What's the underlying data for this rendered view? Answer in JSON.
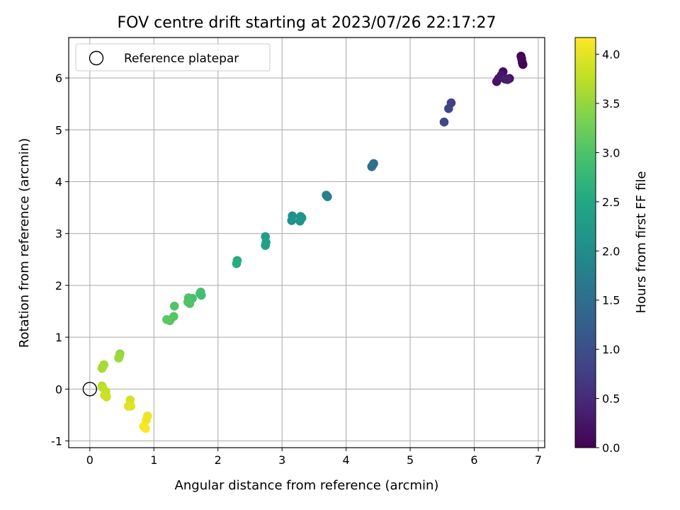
{
  "chart_data": {
    "type": "scatter",
    "title": "FOV centre drift starting at 2023/07/26 22:17:27",
    "xlabel": "Angular distance from reference (arcmin)",
    "ylabel": "Rotation from reference (arcmin)",
    "xlim": [
      -0.33,
      7.1
    ],
    "ylim": [
      -1.13,
      6.78
    ],
    "xticks": [
      0,
      1,
      2,
      3,
      4,
      5,
      6,
      7
    ],
    "yticks": [
      -1,
      0,
      1,
      2,
      3,
      4,
      5,
      6
    ],
    "grid": true,
    "legend": {
      "location": "top-left",
      "entries": [
        "Reference platepar"
      ]
    },
    "reference_point": {
      "x": 0,
      "y": 0,
      "marker": "open-circle"
    },
    "colorbar": {
      "label": "Hours from first FF file",
      "range": [
        0.0,
        4.17
      ],
      "ticks": [
        "0.0",
        "0.5",
        "1.0",
        "1.5",
        "2.0",
        "2.5",
        "3.0",
        "3.5",
        "4.0"
      ],
      "colormap": "viridis"
    },
    "series": [
      {
        "marker": "filled-circle",
        "x": [
          6.73,
          6.75,
          6.76,
          6.74,
          6.45,
          6.5,
          6.55,
          6.35,
          6.38,
          6.42,
          6.48,
          6.52,
          5.64,
          5.6,
          5.53,
          4.43,
          4.4,
          4.41,
          3.69,
          3.71,
          3.16,
          3.15,
          3.29,
          3.28,
          3.31,
          2.74,
          2.75,
          2.74,
          2.3,
          2.29,
          1.73,
          1.74,
          1.72,
          1.57,
          1.6,
          1.54,
          1.53,
          1.56,
          1.32,
          1.31,
          1.25,
          1.2,
          0.47,
          0.46,
          0.45,
          0.22,
          0.2,
          0.19,
          0.19,
          0.2,
          0.25,
          0.26,
          0.23,
          0.63,
          0.62,
          0.6,
          0.64,
          0.9,
          0.88,
          0.84,
          0.87
        ],
        "y": [
          6.42,
          6.3,
          6.26,
          6.37,
          6.12,
          5.98,
          5.99,
          5.93,
          5.99,
          6.05,
          5.98,
          5.97,
          5.52,
          5.41,
          5.15,
          4.35,
          4.29,
          4.31,
          3.74,
          3.71,
          3.34,
          3.25,
          3.33,
          3.24,
          3.3,
          2.94,
          2.83,
          2.77,
          2.48,
          2.42,
          1.87,
          1.81,
          1.84,
          1.74,
          1.75,
          1.76,
          1.68,
          1.65,
          1.6,
          1.4,
          1.32,
          1.34,
          0.68,
          0.63,
          0.6,
          0.47,
          0.43,
          0.4,
          0.06,
          0.03,
          -0.05,
          -0.15,
          -0.12,
          -0.21,
          -0.31,
          -0.33,
          -0.33,
          -0.52,
          -0.6,
          -0.72,
          -0.76
        ],
        "hours": [
          0.0,
          0.03,
          0.05,
          0.07,
          0.12,
          0.15,
          0.18,
          0.21,
          0.24,
          0.27,
          0.3,
          0.33,
          0.8,
          0.85,
          0.9,
          1.5,
          1.52,
          1.55,
          1.8,
          1.82,
          2.05,
          2.08,
          2.1,
          2.12,
          2.15,
          2.3,
          2.33,
          2.36,
          2.55,
          2.58,
          2.88,
          2.9,
          2.92,
          2.93,
          2.95,
          2.97,
          3.0,
          3.02,
          3.03,
          3.05,
          3.07,
          3.1,
          3.5,
          3.52,
          3.55,
          3.6,
          3.62,
          3.64,
          3.7,
          3.75,
          3.8,
          3.82,
          3.85,
          3.9,
          3.93,
          3.96,
          3.98,
          4.05,
          4.08,
          4.12,
          4.15
        ]
      }
    ]
  }
}
